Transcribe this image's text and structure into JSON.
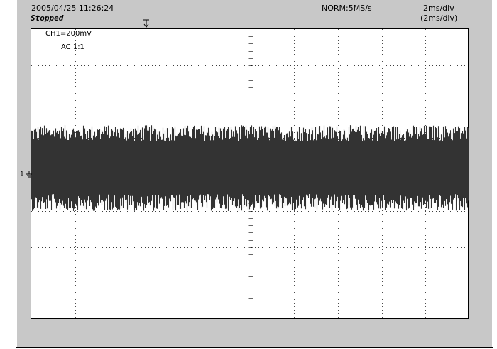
{
  "header": {
    "timestamp": "2005/04/25  11:26:24",
    "status": "Stopped",
    "acquisition": "NORM:5MS/s",
    "timebase": "2ms/div",
    "timebase_zoom": "(2ms/div)"
  },
  "channel": {
    "scale": "CH1=200mV",
    "coupling": "AC  1:1"
  },
  "markers": {
    "trigger_icon": "trigger-position-icon",
    "ground_icon": "ground-reference-icon",
    "ground_label": "1"
  },
  "colors": {
    "trace": "#333333",
    "background": "#c8c8c8",
    "grid": "#000000"
  },
  "display": {
    "horizontal_divisions": 10,
    "vertical_divisions": 8
  }
}
